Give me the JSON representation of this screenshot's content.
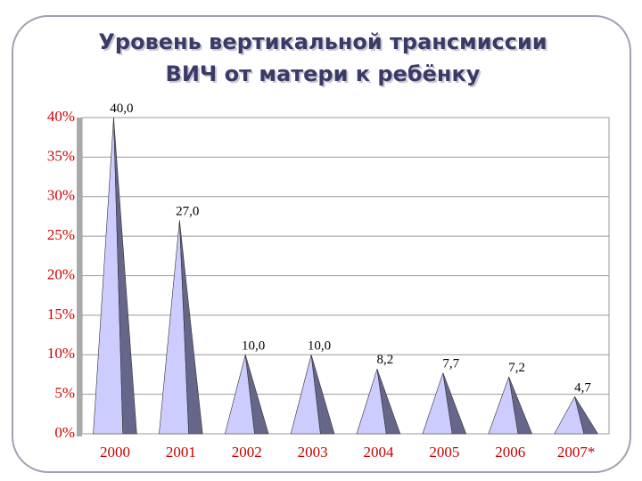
{
  "chart_data": {
    "type": "pyramid",
    "title_lines": [
      "Уровень вертикальной трансмиссии",
      "ВИЧ от матери к ребёнку"
    ],
    "categories": [
      "2000",
      "2001",
      "2002",
      "2003",
      "2004",
      "2005",
      "2006",
      "2007*"
    ],
    "values": [
      40.0,
      27.0,
      10.0,
      10.0,
      8.2,
      7.7,
      7.2,
      4.7
    ],
    "value_labels": [
      "40,0",
      "27,0",
      "10,0",
      "10,0",
      "8,2",
      "7,7",
      "7,2",
      "4,7"
    ],
    "colors": {
      "light": "#ccccff",
      "dark": "#66668a"
    },
    "ylim": [
      0,
      40
    ],
    "yticks": [
      {
        "value": 0,
        "label": "0%"
      },
      {
        "value": 5,
        "label": "5%"
      },
      {
        "value": 10,
        "label": "10%"
      },
      {
        "value": 15,
        "label": "15%"
      },
      {
        "value": 20,
        "label": "20%"
      },
      {
        "value": 25,
        "label": "25%"
      },
      {
        "value": 30,
        "label": "30%"
      },
      {
        "value": 35,
        "label": "35%"
      },
      {
        "value": 40,
        "label": "40%"
      }
    ],
    "grid": true
  }
}
